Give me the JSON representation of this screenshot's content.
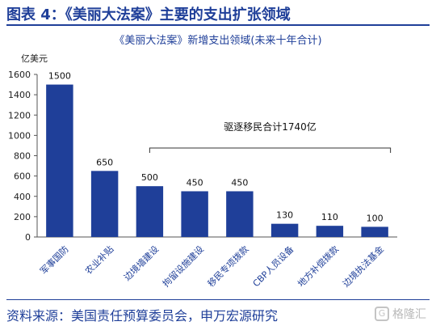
{
  "figure": {
    "title": "图表 4：《美丽大法案》主要的支出扩张领域",
    "source": "资料来源：美国责任预算委员会，申万宏源研究",
    "watermark": {
      "text": "格隆汇",
      "icon": "watermark-logo-icon"
    }
  },
  "chart_data": {
    "type": "bar",
    "title": "《美丽大法案》新增支出领域(未来十年合计)",
    "ylabel": "亿美元",
    "xlabel": "",
    "ylim": [
      0,
      1600
    ],
    "yticks": [
      0,
      200,
      400,
      600,
      800,
      1000,
      1200,
      1400,
      1600
    ],
    "categories": [
      "军事国防",
      "农业补贴",
      "边境墙建设",
      "拘留设施建设",
      "移民专项拨款",
      "CBP人员设备",
      "地方补偿拨款",
      "边境执法基金"
    ],
    "values": [
      1500,
      650,
      500,
      450,
      450,
      130,
      110,
      100
    ],
    "data_labels": [
      "1500",
      "650",
      "500",
      "450",
      "450",
      "130",
      "110",
      "100"
    ],
    "bar_color": "#1f3f99",
    "grid": false,
    "annotation": {
      "text": "驱逐移民合计1740亿",
      "bracket_from_category": 2,
      "bracket_to_category": 7
    }
  }
}
